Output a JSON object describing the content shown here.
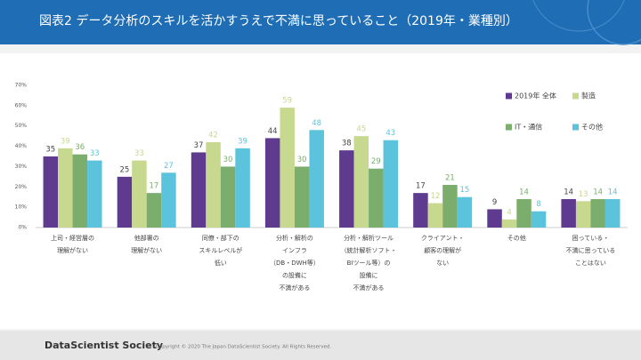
{
  "chart_data": {
    "type": "bar",
    "title": "図表2 データ分析のスキルを活かすうえで不満に思っていること（2019年・業種別）",
    "categories": [
      [
        "上司・経営層の",
        "理解がない"
      ],
      [
        "他部署の",
        "理解がない"
      ],
      [
        "同僚・部下の",
        "スキルレベルが",
        "低い"
      ],
      [
        "分析・解析の",
        "インフラ",
        "（DB・DWH等）",
        "の設備に",
        "不満がある"
      ],
      [
        "分析・解析ツール",
        "（統計解析ソフト・",
        "BIツール等）の",
        "設備に",
        "不満がある"
      ],
      [
        "クライアント・",
        "顧客の理解が",
        "ない"
      ],
      [
        "その他"
      ],
      [
        "困っている・",
        "不満に思っている",
        "ことはない"
      ]
    ],
    "series": [
      {
        "name": "2019年 全体",
        "color": "#5e3b8e",
        "values": [
          35,
          25,
          37,
          44,
          38,
          17,
          9,
          14
        ]
      },
      {
        "name": "製造",
        "color": "#c6d98f",
        "values": [
          39,
          33,
          42,
          59,
          45,
          12,
          4,
          13
        ]
      },
      {
        "name": "IT・通信",
        "color": "#7bae6c",
        "values": [
          36,
          17,
          30,
          30,
          29,
          21,
          14,
          14
        ]
      },
      {
        "name": "その他",
        "color": "#5cc3dd",
        "values": [
          33,
          27,
          39,
          48,
          43,
          15,
          8,
          14
        ]
      }
    ],
    "ylim": [
      0,
      70
    ],
    "yticks": [
      {
        "value": 0,
        "label": "0%"
      },
      {
        "value": 10,
        "label": "10%"
      },
      {
        "value": 20,
        "label": "20%"
      },
      {
        "value": 30,
        "label": "30%"
      },
      {
        "value": 40,
        "label": "40%"
      },
      {
        "value": 50,
        "label": "50%"
      },
      {
        "value": 60,
        "label": "60%"
      },
      {
        "value": 70,
        "label": "70%"
      }
    ],
    "grid": false,
    "legend": "upper right"
  },
  "footer": {
    "brand": "DataScientist Society",
    "copyright": "Copyright © 2020 The Japan DataScientist Society. All Rights Reserved."
  }
}
